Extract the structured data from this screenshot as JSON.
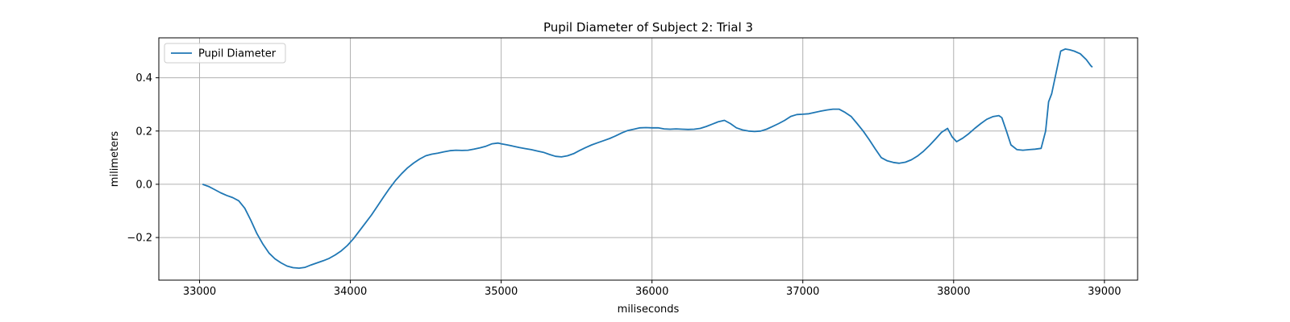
{
  "chart_data": {
    "type": "line",
    "title": "Pupil Diameter of Subject 2: Trial 3",
    "xlabel": "miliseconds",
    "ylabel": "milimeters",
    "xlim": [
      32730,
      39220
    ],
    "ylim": [
      -0.36,
      0.55
    ],
    "xticks": [
      33000,
      34000,
      35000,
      36000,
      37000,
      38000,
      39000
    ],
    "xtick_labels": [
      "33000",
      "34000",
      "35000",
      "36000",
      "37000",
      "38000",
      "39000"
    ],
    "yticks": [
      -0.2,
      0.0,
      0.2,
      0.4
    ],
    "ytick_labels": [
      "−0.2",
      "0.0",
      "0.2",
      "0.4"
    ],
    "grid": true,
    "legend_position": "top-left",
    "series": [
      {
        "name": "Pupil Diameter",
        "color": "#1f77b4",
        "x": [
          33020,
          33060,
          33100,
          33140,
          33180,
          33220,
          33260,
          33300,
          33340,
          33380,
          33420,
          33460,
          33500,
          33540,
          33580,
          33620,
          33660,
          33700,
          33740,
          33780,
          33820,
          33860,
          33900,
          33940,
          33980,
          34020,
          34060,
          34100,
          34140,
          34180,
          34220,
          34260,
          34300,
          34340,
          34380,
          34420,
          34460,
          34500,
          34540,
          34580,
          34620,
          34660,
          34700,
          34740,
          34780,
          34820,
          34860,
          34900,
          34940,
          34980,
          35000,
          35040,
          35080,
          35120,
          35160,
          35200,
          35240,
          35280,
          35320,
          35360,
          35400,
          35440,
          35480,
          35520,
          35560,
          35600,
          35640,
          35680,
          35720,
          35760,
          35800,
          35840,
          35880,
          35920,
          35960,
          36000,
          36040,
          36080,
          36120,
          36160,
          36200,
          36240,
          36280,
          36320,
          36360,
          36400,
          36440,
          36480,
          36520,
          36560,
          36600,
          36640,
          36680,
          36720,
          36760,
          36800,
          36840,
          36880,
          36920,
          36960,
          37000,
          37040,
          37080,
          37120,
          37160,
          37200,
          37240,
          37280,
          37320,
          37360,
          37400,
          37440,
          37480,
          37520,
          37560,
          37600,
          37640,
          37680,
          37720,
          37760,
          37800,
          37840,
          37880,
          37920,
          37960,
          37990,
          38020,
          38060,
          38100,
          38140,
          38180,
          38220,
          38260,
          38300,
          38320,
          38350,
          38380,
          38420,
          38460,
          38500,
          38540,
          38580,
          38610,
          38630,
          38650,
          38680,
          38710,
          38740,
          38770,
          38800,
          38840,
          38880,
          38910,
          38920
        ],
        "y": [
          0.0,
          -0.008,
          -0.02,
          -0.032,
          -0.042,
          -0.05,
          -0.062,
          -0.09,
          -0.135,
          -0.185,
          -0.225,
          -0.258,
          -0.28,
          -0.295,
          -0.307,
          -0.313,
          -0.315,
          -0.312,
          -0.303,
          -0.295,
          -0.287,
          -0.278,
          -0.265,
          -0.25,
          -0.23,
          -0.205,
          -0.175,
          -0.145,
          -0.115,
          -0.082,
          -0.048,
          -0.015,
          0.015,
          0.04,
          0.062,
          0.08,
          0.095,
          0.107,
          0.113,
          0.117,
          0.122,
          0.126,
          0.128,
          0.127,
          0.128,
          0.132,
          0.137,
          0.143,
          0.152,
          0.155,
          0.152,
          0.148,
          0.143,
          0.138,
          0.134,
          0.13,
          0.125,
          0.12,
          0.112,
          0.105,
          0.103,
          0.107,
          0.115,
          0.127,
          0.138,
          0.148,
          0.156,
          0.164,
          0.172,
          0.182,
          0.193,
          0.202,
          0.207,
          0.212,
          0.213,
          0.212,
          0.212,
          0.208,
          0.207,
          0.208,
          0.207,
          0.206,
          0.207,
          0.21,
          0.217,
          0.226,
          0.235,
          0.24,
          0.228,
          0.212,
          0.204,
          0.2,
          0.198,
          0.2,
          0.207,
          0.217,
          0.228,
          0.24,
          0.255,
          0.262,
          0.263,
          0.265,
          0.27,
          0.275,
          0.279,
          0.282,
          0.282,
          0.27,
          0.255,
          0.228,
          0.2,
          0.168,
          0.133,
          0.1,
          0.088,
          0.082,
          0.079,
          0.083,
          0.092,
          0.106,
          0.124,
          0.146,
          0.17,
          0.195,
          0.21,
          0.178,
          0.16,
          0.173,
          0.19,
          0.21,
          0.228,
          0.244,
          0.254,
          0.258,
          0.25,
          0.2,
          0.148,
          0.13,
          0.128,
          0.13,
          0.132,
          0.135,
          0.2,
          0.31,
          0.34,
          0.42,
          0.5,
          0.508,
          0.505,
          0.5,
          0.49,
          0.468,
          0.445,
          0.44
        ]
      }
    ]
  }
}
